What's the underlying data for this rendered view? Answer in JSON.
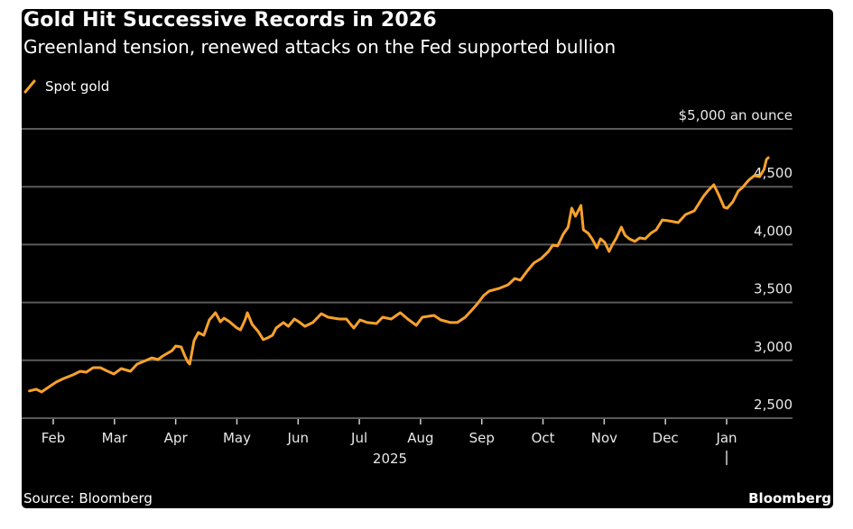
{
  "header": {
    "title": "Gold Hit Successive Records in 2026",
    "subtitle": "Greenland tension, renewed attacks on the Fed supported bullion"
  },
  "legend": [
    {
      "label": "Spot gold",
      "color": "#f7a12b",
      "icon": "line-swatch-icon"
    }
  ],
  "footer": {
    "source": "Source: Bloomberg",
    "brand": "Bloomberg"
  },
  "chart_data": {
    "type": "line",
    "title": "Gold Hit Successive Records in 2026",
    "subtitle": "Greenland tension, renewed attacks on the Fed supported bullion",
    "xlabel": "",
    "ylabel": "$5,000 an ounce",
    "ylim": [
      2500,
      5000
    ],
    "yticks": [
      2500,
      3000,
      3500,
      4000,
      4500,
      5000
    ],
    "ytick_labels": [
      "2,500",
      "3,000",
      "3,500",
      "4,000",
      "4,500",
      "$5,000 an ounce"
    ],
    "grid": true,
    "legend_position": "top-left",
    "y_axis_side": "right",
    "x_ticks": [
      {
        "label": "Feb",
        "pos": 1.0
      },
      {
        "label": "Mar",
        "pos": 2.0
      },
      {
        "label": "Apr",
        "pos": 3.0
      },
      {
        "label": "May",
        "pos": 4.0
      },
      {
        "label": "Jun",
        "pos": 5.0
      },
      {
        "label": "Jul",
        "pos": 6.0
      },
      {
        "label": "Aug",
        "pos": 7.0
      },
      {
        "label": "Sep",
        "pos": 8.0
      },
      {
        "label": "Oct",
        "pos": 9.0
      },
      {
        "label": "Nov",
        "pos": 10.0
      },
      {
        "label": "Dec",
        "pos": 11.0
      },
      {
        "label": "Jan",
        "pos": 12.0
      }
    ],
    "x_year_labels": [
      {
        "label": "2025",
        "pos": 6.5
      }
    ],
    "x_year_divider": 12.0,
    "xlim": [
      0.49,
      13.0
    ],
    "series": [
      {
        "name": "Spot gold",
        "color": "#f7a12b",
        "x": [
          0.61,
          0.72,
          0.81,
          0.94,
          1.05,
          1.17,
          1.32,
          1.44,
          1.54,
          1.65,
          1.77,
          1.89,
          1.99,
          2.11,
          2.26,
          2.37,
          2.51,
          2.61,
          2.71,
          2.79,
          2.94,
          3.0,
          3.09,
          3.15,
          3.2,
          3.23,
          3.3,
          3.37,
          3.46,
          3.55,
          3.65,
          3.73,
          3.79,
          3.88,
          4.0,
          4.06,
          4.14,
          4.17,
          4.25,
          4.35,
          4.43,
          4.5,
          4.58,
          4.64,
          4.76,
          4.84,
          4.94,
          5.01,
          5.11,
          5.24,
          5.38,
          5.49,
          5.67,
          5.79,
          5.86,
          5.91,
          6.01,
          6.13,
          6.28,
          6.38,
          6.52,
          6.67,
          6.79,
          6.93,
          7.03,
          7.22,
          7.33,
          7.49,
          7.6,
          7.73,
          7.84,
          7.93,
          8.03,
          8.12,
          8.28,
          8.43,
          8.54,
          8.63,
          8.75,
          8.85,
          8.97,
          9.09,
          9.16,
          9.24,
          9.33,
          9.41,
          9.47,
          9.53,
          9.62,
          9.66,
          9.74,
          9.81,
          9.88,
          9.94,
          10.01,
          10.08,
          10.13,
          10.2,
          10.28,
          10.34,
          10.41,
          10.5,
          10.58,
          10.67,
          10.76,
          10.85,
          10.95,
          11.06,
          11.21,
          11.33,
          11.47,
          11.62,
          11.69,
          11.79,
          11.87,
          11.96,
          12.01,
          12.1,
          12.19,
          12.26,
          12.36,
          12.45,
          12.54,
          12.61,
          12.65,
          12.68
        ],
        "values": [
          2735,
          2750,
          2727,
          2773,
          2812,
          2843,
          2874,
          2905,
          2897,
          2936,
          2936,
          2905,
          2882,
          2928,
          2905,
          2967,
          2998,
          3021,
          3006,
          3037,
          3083,
          3123,
          3115,
          3037,
          2983,
          2967,
          3170,
          3240,
          3216,
          3349,
          3411,
          3333,
          3364,
          3333,
          3279,
          3263,
          3357,
          3411,
          3310,
          3248,
          3178,
          3193,
          3216,
          3279,
          3326,
          3294,
          3357,
          3333,
          3294,
          3326,
          3403,
          3372,
          3357,
          3357,
          3310,
          3279,
          3349,
          3326,
          3318,
          3372,
          3357,
          3411,
          3357,
          3302,
          3372,
          3388,
          3349,
          3326,
          3326,
          3372,
          3435,
          3489,
          3559,
          3598,
          3621,
          3653,
          3707,
          3692,
          3777,
          3840,
          3879,
          3941,
          3995,
          3988,
          4089,
          4151,
          4315,
          4245,
          4338,
          4128,
          4097,
          4042,
          3972,
          4050,
          4019,
          3941,
          3995,
          4058,
          4151,
          4081,
          4050,
          4027,
          4058,
          4050,
          4097,
          4128,
          4213,
          4205,
          4190,
          4260,
          4291,
          4416,
          4463,
          4517,
          4431,
          4322,
          4315,
          4369,
          4463,
          4494,
          4556,
          4595,
          4587,
          4649,
          4735,
          4751
        ]
      }
    ]
  }
}
